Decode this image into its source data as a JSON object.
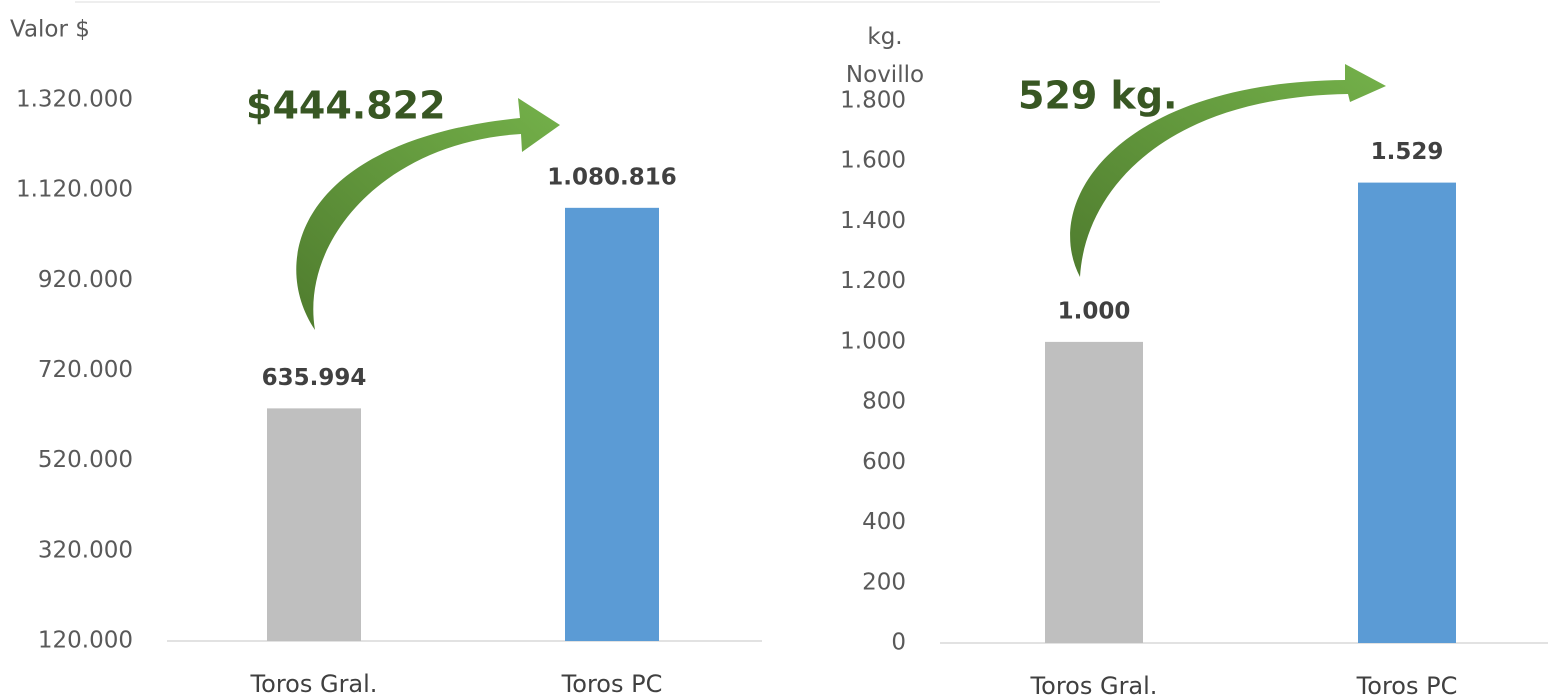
{
  "chart_data": [
    {
      "type": "bar",
      "y_label": "Valor $",
      "annotation": "$444.822",
      "categories": [
        "Toros Gral.",
        "Toros PC"
      ],
      "values": [
        635994,
        1080816
      ],
      "value_labels": [
        "635.994",
        "1.080.816"
      ],
      "colors": [
        "#bfbfbf",
        "#5b9bd5"
      ],
      "ylim": [
        120000,
        1320000
      ],
      "yticks": [
        {
          "value": 120000,
          "label": "120.000"
        },
        {
          "value": 320000,
          "label": "320.000"
        },
        {
          "value": 520000,
          "label": "520.000"
        },
        {
          "value": 720000,
          "label": "720.000"
        },
        {
          "value": 920000,
          "label": "920.000"
        },
        {
          "value": 1120000,
          "label": "1.120.000"
        },
        {
          "value": 1320000,
          "label": "1.320.000"
        }
      ],
      "grid": false
    },
    {
      "type": "bar",
      "y_label": "kg. Novillo",
      "annotation": "529 kg.",
      "categories": [
        "Toros Gral.",
        "Toros PC"
      ],
      "values": [
        1000,
        1529
      ],
      "value_labels": [
        "1.000",
        "1.529"
      ],
      "colors": [
        "#bfbfbf",
        "#5b9bd5"
      ],
      "ylim": [
        0,
        1800
      ],
      "yticks": [
        0,
        200,
        400,
        600,
        800,
        {
          "value": 1000,
          "label": "1.000"
        },
        {
          "value": 1200,
          "label": "1.200"
        },
        {
          "value": 1400,
          "label": "1.400"
        },
        {
          "value": 1600,
          "label": "1.600"
        },
        {
          "value": 1800,
          "label": "1.800"
        }
      ],
      "grid": false
    }
  ]
}
